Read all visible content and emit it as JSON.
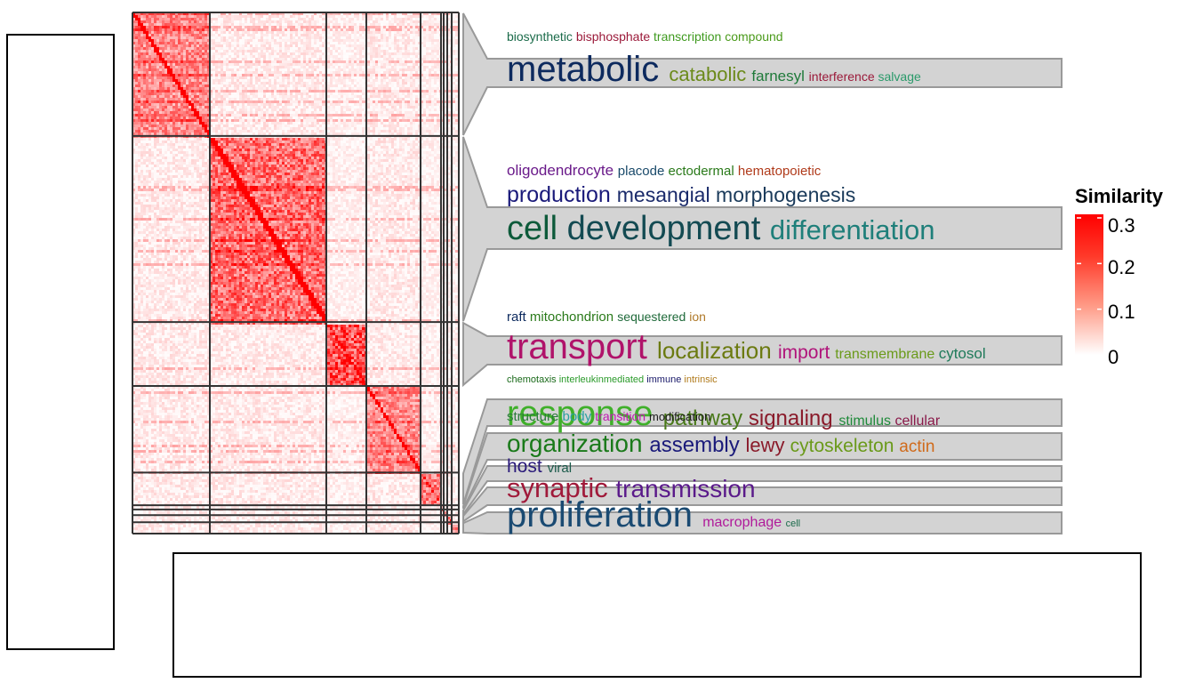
{
  "chart_data": {
    "type": "heatmap",
    "title": "",
    "description_label": "Similarity",
    "colorbar": {
      "title": "Similarity",
      "ticks": [
        "0",
        "0.1",
        "0.2",
        "0.3"
      ],
      "tick_values": [
        0,
        0.1,
        0.2,
        0.3
      ],
      "range": [
        0,
        0.3
      ],
      "colors": [
        "#ffffff",
        "#ff0000"
      ]
    },
    "clusters": [
      {
        "size": 87,
        "within_similarity": 0.16,
        "between_similarity": 0.04
      },
      {
        "size": 131,
        "within_similarity": 0.2,
        "between_similarity": 0.04
      },
      {
        "size": 45,
        "within_similarity": 0.24,
        "between_similarity": 0.03
      },
      {
        "size": 61,
        "within_similarity": 0.16,
        "between_similarity": 0.04
      },
      {
        "size": 23,
        "within_similarity": 0.18,
        "between_similarity": 0.03
      },
      {
        "size": 3,
        "within_similarity": 0.2,
        "between_similarity": 0.03
      },
      {
        "size": 4,
        "within_similarity": 0.2,
        "between_similarity": 0.03
      },
      {
        "size": 5,
        "within_similarity": 0.2,
        "between_similarity": 0.03
      },
      {
        "size": 8,
        "within_similarity": 0.2,
        "between_similarity": 0.03
      }
    ],
    "word_clouds": [
      {
        "boxed": true,
        "lines": [
          [
            {
              "text": "biosynthetic",
              "size": 14,
              "color": "#1b6b4a"
            },
            {
              "text": "bisphosphate",
              "size": 14,
              "color": "#9b1a3a"
            },
            {
              "text": "transcription",
              "size": 14,
              "color": "#3f9a1f"
            },
            {
              "text": "compound",
              "size": 14,
              "color": "#4a9a1a"
            }
          ],
          [
            {
              "text": "metabolic",
              "size": 40,
              "color": "#0d2a5e"
            },
            {
              "text": "catabolic",
              "size": 22,
              "color": "#6b8a1a"
            },
            {
              "text": "farnesyl",
              "size": 17,
              "color": "#1f7a3a"
            },
            {
              "text": "interference",
              "size": 14,
              "color": "#9b1a3a"
            },
            {
              "text": "salvage",
              "size": 14,
              "color": "#2a9a6a"
            }
          ]
        ]
      },
      {
        "boxed": true,
        "lines": [
          [
            {
              "text": "oligodendrocyte",
              "size": 17,
              "color": "#6a1a8a"
            },
            {
              "text": "placode",
              "size": 15,
              "color": "#1a4a6a"
            },
            {
              "text": "ectodermal",
              "size": 15,
              "color": "#2a7a1a"
            },
            {
              "text": "hematopoietic",
              "size": 15,
              "color": "#b03a1a"
            }
          ],
          [
            {
              "text": "production",
              "size": 25,
              "color": "#1a1a7a"
            },
            {
              "text": "mesangial",
              "size": 23,
              "color": "#1a2a6a"
            },
            {
              "text": "morphogenesis",
              "size": 23,
              "color": "#1a3a5a"
            }
          ],
          [
            {
              "text": "cell",
              "size": 38,
              "color": "#0d5a3a"
            },
            {
              "text": "development",
              "size": 38,
              "color": "#134a52"
            },
            {
              "text": "differentiation",
              "size": 31,
              "color": "#1f7f7a"
            }
          ]
        ]
      },
      {
        "boxed": true,
        "lines": [
          [
            {
              "text": "raft",
              "size": 15,
              "color": "#0d2a5e"
            },
            {
              "text": "mitochondrion",
              "size": 15,
              "color": "#2a7a1a"
            },
            {
              "text": "sequestered",
              "size": 14,
              "color": "#1f6a3a"
            },
            {
              "text": "ion",
              "size": 14,
              "color": "#b07a2a"
            }
          ],
          [
            {
              "text": "transport",
              "size": 40,
              "color": "#b0136a"
            },
            {
              "text": "localization",
              "size": 26,
              "color": "#6b7a10"
            },
            {
              "text": "import",
              "size": 21,
              "color": "#b0137a"
            },
            {
              "text": "transmembrane",
              "size": 16,
              "color": "#6a9a1a"
            },
            {
              "text": "cytosol",
              "size": 17,
              "color": "#1f7a5a"
            }
          ]
        ]
      },
      {
        "boxed": false,
        "lines": [
          [
            {
              "text": "chemotaxis",
              "size": 11,
              "color": "#1a6a1a"
            },
            {
              "text": "interleukinmediated",
              "size": 11,
              "color": "#2a9a2a"
            },
            {
              "text": "immune",
              "size": 11,
              "color": "#1a1a6a"
            },
            {
              "text": "intrinsic",
              "size": 11,
              "color": "#b07a1a"
            }
          ]
        ]
      },
      {
        "boxed": true,
        "lines": [
          [
            {
              "text": "response",
              "size": 40,
              "color": "#3fb02a"
            },
            {
              "text": "pathway",
              "size": 24,
              "color": "#4a7a1a"
            },
            {
              "text": "signaling",
              "size": 24,
              "color": "#8a1a2a"
            },
            {
              "text": "stimulus",
              "size": 16,
              "color": "#1f8a3a"
            },
            {
              "text": "cellular",
              "size": 16,
              "color": "#8a1a4a"
            }
          ],
          [
            {
              "text": "structure",
              "size": 15,
              "color": "#2a7a3a"
            },
            {
              "text": "body",
              "size": 15,
              "color": "#2aa0a0"
            },
            {
              "text": "transition",
              "size": 14,
              "color": "#c01ab0"
            },
            {
              "text": "modification",
              "size": 13,
              "color": "#1a1a1a"
            }
          ]
        ]
      },
      {
        "boxed": true,
        "lines": [
          [
            {
              "text": "organization",
              "size": 28,
              "color": "#1a7a1a"
            },
            {
              "text": "assembly",
              "size": 24,
              "color": "#1a1a7a"
            },
            {
              "text": "lewy",
              "size": 22,
              "color": "#8a1a2a"
            },
            {
              "text": "cytoskeleton",
              "size": 21,
              "color": "#6a9a1a"
            },
            {
              "text": "actin",
              "size": 19,
              "color": "#d06a1a"
            }
          ]
        ]
      },
      {
        "boxed": true,
        "lines": [
          [
            {
              "text": "host",
              "size": 21,
              "color": "#2a1a7a"
            },
            {
              "text": "viral",
              "size": 15,
              "color": "#1a5a4a"
            }
          ]
        ]
      },
      {
        "boxed": true,
        "lines": [
          [
            {
              "text": "synaptic",
              "size": 31,
              "color": "#a01a3a"
            },
            {
              "text": "transmission",
              "size": 28,
              "color": "#5a1a8a"
            }
          ]
        ]
      },
      {
        "boxed": true,
        "lines": [
          [
            {
              "text": "proliferation",
              "size": 40,
              "color": "#1a4a72"
            },
            {
              "text": "macrophage",
              "size": 16,
              "color": "#b01a9a"
            },
            {
              "text": "cell",
              "size": 11,
              "color": "#1a6a4a"
            }
          ]
        ]
      }
    ]
  }
}
